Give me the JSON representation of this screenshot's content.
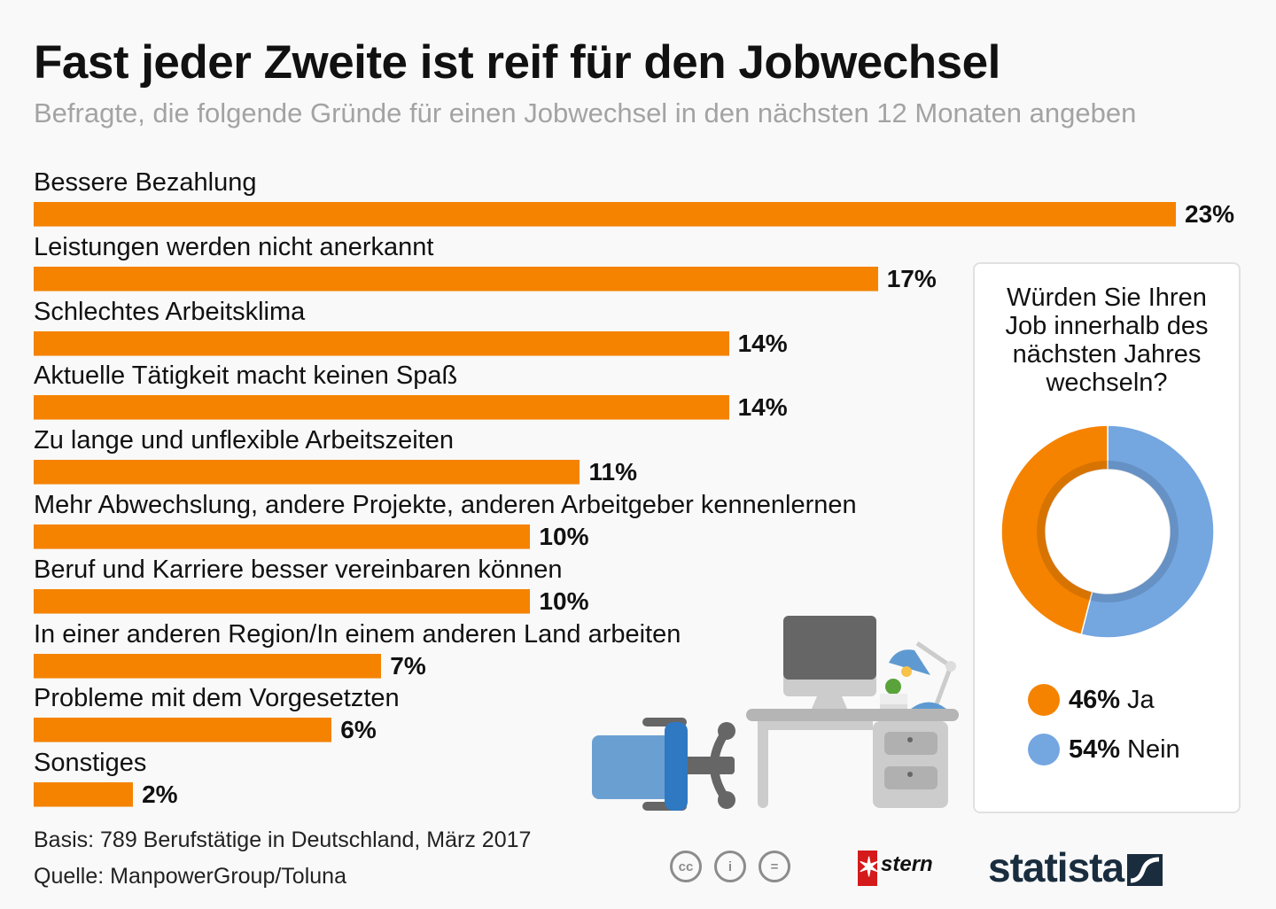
{
  "header": {
    "title": "Fast jeder Zweite ist reif für den Jobwechsel",
    "subtitle": "Befragte, die folgende Gründe für einen Jobwechsel in den nächsten 12 Monaten angeben"
  },
  "chart_data": [
    {
      "type": "bar",
      "orientation": "horizontal",
      "title": "Fast jeder Zweite ist reif für den Jobwechsel",
      "subtitle": "Befragte, die folgende Gründe für einen Jobwechsel in den nächsten 12 Monaten angeben",
      "categories": [
        "Bessere Bezahlung",
        "Leistungen werden nicht anerkannt",
        "Schlechtes Arbeitsklima",
        "Aktuelle Tätigkeit macht keinen Spaß",
        "Zu lange und unflexible Arbeitszeiten",
        "Mehr Abwechslung, andere Projekte, anderen Arbeitgeber kennenlernen",
        "Beruf und Karriere besser vereinbaren können",
        "In einer anderen Region/In einem anderen Land arbeiten",
        "Probleme mit dem Vorgesetzten",
        "Sonstiges"
      ],
      "values": [
        23,
        17,
        14,
        14,
        11,
        10,
        10,
        7,
        6,
        2
      ],
      "value_labels": [
        "23%",
        "17%",
        "14%",
        "14%",
        "11%",
        "10%",
        "10%",
        "7%",
        "6%",
        "2%"
      ],
      "unit": "%",
      "xlim": [
        0,
        23
      ],
      "grid": false,
      "color": "#f58300"
    },
    {
      "type": "pie",
      "variant": "donut",
      "title": "Würden Sie Ihren Job innerhalb des nächsten Jahres wechseln?",
      "slices": [
        {
          "label": "Ja",
          "value": 46,
          "value_label": "46%",
          "color": "#f58300"
        },
        {
          "label": "Nein",
          "value": 54,
          "value_label": "54%",
          "color": "#74a6e0"
        }
      ],
      "legend": "bottom"
    }
  ],
  "panel": {
    "question_lines": [
      "Würden Sie Ihren",
      "Job innerhalb des",
      "nächsten Jahres",
      "wechseln?"
    ]
  },
  "footer": {
    "basis": "Basis: 789 Berufstätige in Deutschland, März 2017",
    "source": "Quelle: ManpowerGroup/Toluna",
    "license_icons": [
      "cc-icon",
      "by-icon",
      "nd-icon"
    ],
    "cc_labels": [
      "cc",
      "i",
      "="
    ],
    "stern_star": "✶",
    "stern": "stern",
    "statista": "statista"
  },
  "illustration": {
    "description": "office desk with monitor, lamp, plant and chair"
  }
}
